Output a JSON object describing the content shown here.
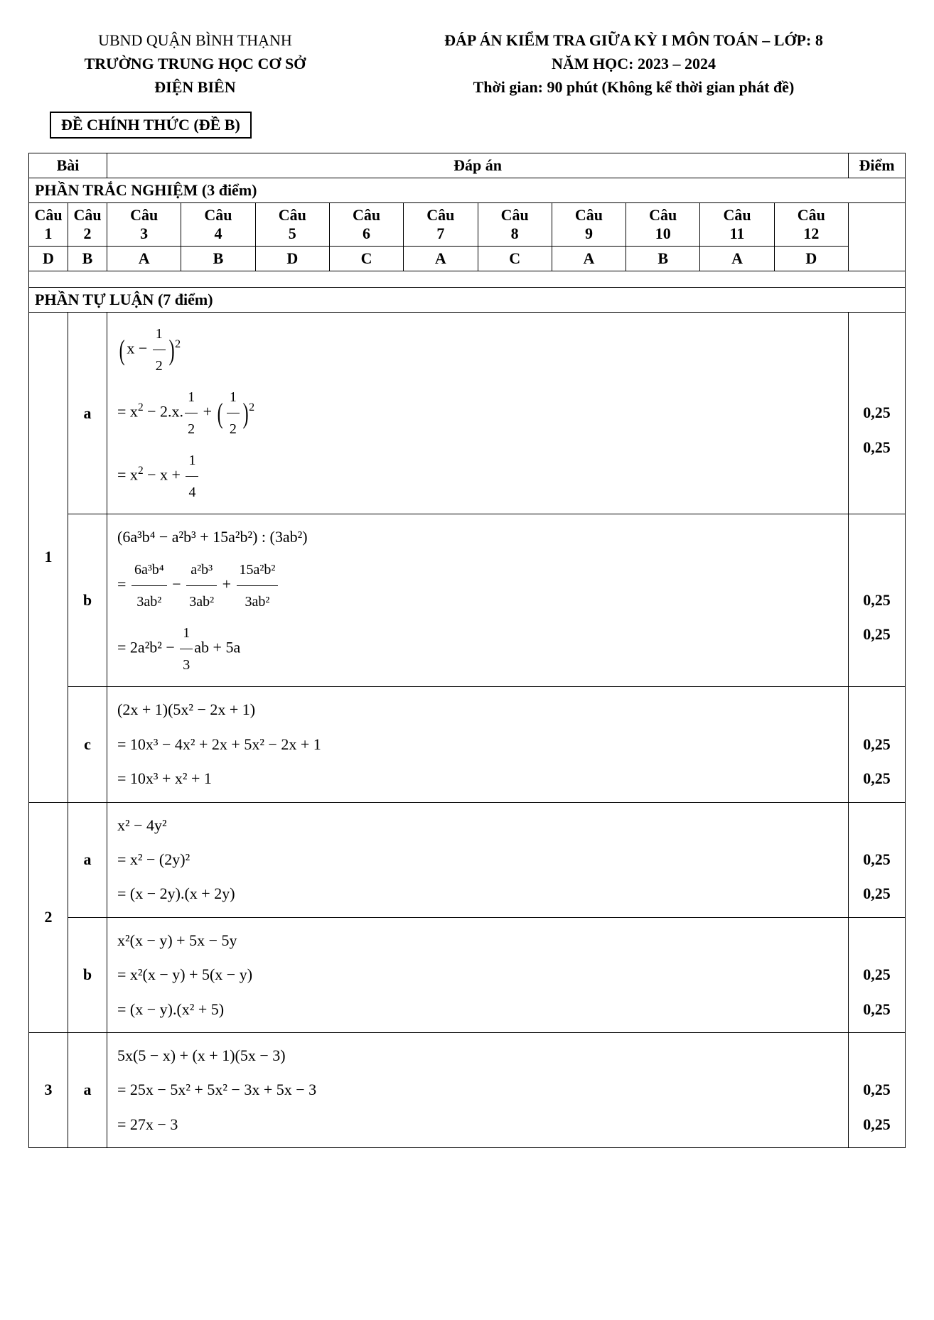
{
  "header": {
    "left_line1": "UBND QUẬN BÌNH THẠNH",
    "left_line2": "TRƯỜNG TRUNG HỌC CƠ SỞ",
    "left_line3": "ĐIỆN BIÊN",
    "right_line1": "ĐÁP ÁN KIỂM TRA GIỮA KỲ I MÔN TOÁN – LỚP: 8",
    "right_line2": "NĂM HỌC: 2023 – 2024",
    "right_line3": "Thời gian: 90 phút (Không kể thời gian phát đề)"
  },
  "exam_label": "ĐỀ CHÍNH THỨC (ĐỀ B)",
  "table_headers": {
    "bai": "Bài",
    "dap_an": "Đáp án",
    "diem": "Điểm"
  },
  "trac_nghiem": {
    "title": "PHẦN TRẮC NGHIỆM (3 điểm)",
    "col_prefix": "Câu",
    "cols": [
      "1",
      "2",
      "3",
      "4",
      "5",
      "6",
      "7",
      "8",
      "9",
      "10",
      "11",
      "12"
    ],
    "answers": [
      "D",
      "B",
      "A",
      "B",
      "D",
      "C",
      "A",
      "C",
      "A",
      "B",
      "A",
      "D"
    ]
  },
  "tu_luan_title": "PHẦN TỰ LUẬN (7 điểm)",
  "q1": {
    "label": "1",
    "a": {
      "label": "a",
      "line1_pre": "x − ",
      "line1_num": "1",
      "line1_den": "2",
      "line2_pre": "= x",
      "line2_sup1": "2",
      "line2_mid": " − 2.x.",
      "line2_num": "1",
      "line2_den": "2",
      "line2_plus": " + ",
      "line2b_num": "1",
      "line2b_den": "2",
      "line3_pre": "= x",
      "line3_sup": "2",
      "line3_mid": " − x + ",
      "line3_num": "1",
      "line3_den": "4",
      "pt1": "0,25",
      "pt2": "0,25"
    },
    "b": {
      "label": "b",
      "line1": "(6a³b⁴ − a²b³ + 15a²b²) : (3ab²)",
      "f1n": "6a³b⁴",
      "f1d": "3ab²",
      "f2n": "a²b³",
      "f2d": "3ab²",
      "f3n": "15a²b²",
      "f3d": "3ab²",
      "line3_a": "=  2a²b² − ",
      "line3_num": "1",
      "line3_den": "3",
      "line3_b": "ab  +  5a",
      "pt1": "0,25",
      "pt2": "0,25"
    },
    "c": {
      "label": "c",
      "line1": "(2x + 1)(5x² − 2x + 1)",
      "line2": "=  10x³ − 4x² + 2x + 5x² − 2x + 1",
      "line3": "=  10x³ + x² + 1",
      "pt1": "0,25",
      "pt2": "0,25"
    }
  },
  "q2": {
    "label": "2",
    "a": {
      "label": "a",
      "line1": "x² − 4y²",
      "line2": "= x² − (2y)²",
      "line3": "= (x − 2y).(x + 2y)",
      "pt1": "0,25",
      "pt2": "0,25"
    },
    "b": {
      "label": "b",
      "line1": "x²(x − y) + 5x − 5y",
      "line2": "= x²(x − y) + 5(x − y)",
      "line3": "= (x − y).(x² + 5)",
      "pt1": "0,25",
      "pt2": "0,25"
    }
  },
  "q3": {
    "label": "3",
    "a": {
      "label": "a",
      "line1": "5x(5 − x) + (x + 1)(5x − 3)",
      "line2": "= 25x − 5x² + 5x² − 3x + 5x − 3",
      "line3": "= 27x − 3",
      "pt1": "0,25",
      "pt2": "0,25"
    }
  }
}
